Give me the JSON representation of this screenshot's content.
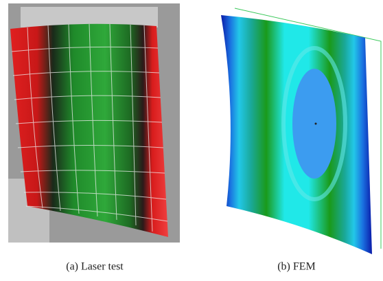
{
  "figure": {
    "panels": [
      {
        "caption": "(a) Laser test"
      },
      {
        "caption": "(b) FEM"
      }
    ]
  }
}
